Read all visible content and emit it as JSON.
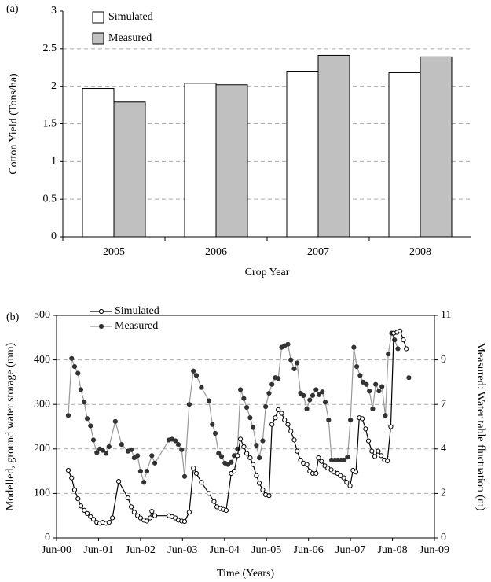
{
  "chart_data": [
    {
      "type": "bar",
      "label": "(a)",
      "x_label": "Crop Year",
      "y_label": "Cotton Yield  (Tons/ha)",
      "categories": [
        "2005",
        "2006",
        "2007",
        "2008"
      ],
      "series": [
        {
          "name": "Simulated",
          "color": "#ffffff",
          "values": [
            1.97,
            2.04,
            2.2,
            2.18
          ]
        },
        {
          "name": "Measured",
          "color": "#c0c0c0",
          "values": [
            1.79,
            2.02,
            2.41,
            2.39
          ]
        }
      ],
      "ylim": [
        0,
        3
      ],
      "yticks": [
        0,
        0.5,
        1,
        1.5,
        2,
        2.5,
        3
      ],
      "grid": true,
      "legend": "upper left"
    },
    {
      "type": "line",
      "label": "(b)",
      "x_label": "Time (Years)",
      "y_label": "Modelled, ground water storage (mm)",
      "y2_label": "Measured: Water table fluctuation (m)",
      "xlim": [
        2000.42,
        2009.42
      ],
      "xticks": [
        {
          "value": 2000.42,
          "label": "Jun-00"
        },
        {
          "value": 2001.42,
          "label": "Jun-01"
        },
        {
          "value": 2002.42,
          "label": "Jun-02"
        },
        {
          "value": 2003.42,
          "label": "Jun-03"
        },
        {
          "value": 2004.42,
          "label": "Jun-04"
        },
        {
          "value": 2005.42,
          "label": "Jun-05"
        },
        {
          "value": 2006.42,
          "label": "Jun-06"
        },
        {
          "value": 2007.42,
          "label": "Jun-07"
        },
        {
          "value": 2008.42,
          "label": "Jun-08"
        },
        {
          "value": 2009.42,
          "label": "Jun-09"
        }
      ],
      "ylim": [
        0,
        500
      ],
      "yticks": [
        0,
        100,
        200,
        300,
        400,
        500
      ],
      "y2lim": [
        0,
        11
      ],
      "y2ticks": [
        0,
        {
          "value": 2.2,
          "label": "2"
        },
        {
          "value": 4.4,
          "label": "4"
        },
        {
          "value": 6.6,
          "label": "7"
        },
        {
          "value": 8.8,
          "label": "9"
        },
        11
      ],
      "grid": true,
      "legend": "upper left",
      "series": [
        {
          "name": "Simulated",
          "color": "#000000",
          "x": [
            2000.7,
            2000.78,
            2000.85,
            2000.93,
            2001.0,
            2001.08,
            2001.15,
            2001.23,
            2001.3,
            2001.38,
            2001.45,
            2001.52,
            2001.6,
            2001.67,
            2001.75,
            2001.9,
            2002.12,
            2002.2,
            2002.27,
            2002.35,
            2002.42,
            2002.5,
            2002.57,
            2002.65,
            2002.69,
            2002.76,
            2003.1,
            2003.17,
            2003.25,
            2003.32,
            2003.4,
            2003.47,
            2003.58,
            2003.68,
            2003.75,
            2003.87,
            2004.05,
            2004.17,
            2004.24,
            2004.32,
            2004.39,
            2004.46,
            2004.58,
            2004.65,
            2004.73,
            2004.8,
            2004.88,
            2004.95,
            2005.03,
            2005.1,
            2005.18,
            2005.25,
            2005.33,
            2005.4,
            2005.48,
            2005.55,
            2005.63,
            2005.7,
            2005.78,
            2005.85,
            2005.93,
            2006.0,
            2006.08,
            2006.15,
            2006.23,
            2006.3,
            2006.38,
            2006.45,
            2006.52,
            2006.6,
            2006.66,
            2006.73,
            2006.81,
            2006.88,
            2006.96,
            2007.03,
            2007.11,
            2007.18,
            2007.26,
            2007.33,
            2007.41,
            2007.48,
            2007.55,
            2007.63,
            2007.7,
            2007.78,
            2007.85,
            2007.93,
            2008.0,
            2008.08,
            2008.15,
            2008.23,
            2008.3,
            2008.38,
            2008.45,
            2008.53,
            2008.6,
            2008.68,
            2008.75
          ],
          "values": [
            152,
            135,
            108,
            88,
            72,
            62,
            55,
            48,
            42,
            35,
            33,
            35,
            33,
            35,
            45,
            127,
            90,
            70,
            58,
            50,
            45,
            40,
            38,
            45,
            60,
            50,
            50,
            48,
            45,
            40,
            38,
            37,
            58,
            157,
            145,
            125,
            100,
            82,
            70,
            66,
            64,
            62,
            145,
            150,
            185,
            222,
            205,
            190,
            180,
            165,
            140,
            123,
            108,
            97,
            95,
            255,
            270,
            288,
            280,
            265,
            255,
            240,
            220,
            195,
            175,
            168,
            165,
            150,
            145,
            145,
            180,
            172,
            162,
            157,
            153,
            148,
            145,
            140,
            135,
            125,
            117,
            152,
            148,
            270,
            268,
            245,
            218,
            195,
            183,
            195,
            185,
            175,
            173,
            250,
            460,
            462,
            465,
            445,
            425
          ]
        },
        {
          "name": "Measured",
          "color": "#999999",
          "marker_color": "#333333",
          "axis": "y2",
          "x": [
            2000.7,
            2000.78,
            2000.85,
            2000.93,
            2001.0,
            2001.08,
            2001.15,
            2001.23,
            2001.3,
            2001.38,
            2001.45,
            2001.52,
            2001.6,
            2001.67,
            2001.82,
            2001.97,
            2002.12,
            2002.2,
            2002.27,
            2002.35,
            2002.42,
            2002.5,
            2002.57,
            2002.69,
            2002.76,
            2003.1,
            2003.17,
            2003.25,
            2003.32,
            2003.4,
            2003.47,
            2003.58,
            2003.68,
            2003.75,
            2003.87,
            2004.05,
            2004.13,
            2004.2,
            2004.28,
            2004.35,
            2004.43,
            2004.5,
            2004.58,
            2004.65,
            2004.73,
            2004.8,
            2004.88,
            2004.95,
            2005.03,
            2005.1,
            2005.18,
            2005.25,
            2005.33,
            2005.4,
            2005.48,
            2005.55,
            2005.63,
            2005.7,
            2005.78,
            2005.85,
            2005.93,
            2006.0,
            2006.08,
            2006.15,
            2006.23,
            2006.3,
            2006.38,
            2006.45,
            2006.52,
            2006.6,
            2006.67,
            2006.75,
            2006.82,
            2006.9,
            2006.97,
            2007.05,
            2007.12,
            2007.2,
            2007.27,
            2007.35,
            2007.42,
            2007.5,
            2007.57,
            2007.65,
            2007.72,
            2007.8,
            2007.87,
            2007.95,
            2008.02,
            2008.1,
            2008.17,
            2008.25,
            2008.32,
            2008.4,
            2008.47,
            2008.55,
            2008.68,
            2008.81
          ],
          "values": [
            6.05,
            8.87,
            8.47,
            8.14,
            7.33,
            6.71,
            5.9,
            5.54,
            4.84,
            4.22,
            4.4,
            4.33,
            4.18,
            4.51,
            5.76,
            4.62,
            4.29,
            4.36,
            3.96,
            4.07,
            3.3,
            2.75,
            3.3,
            4.07,
            3.7,
            4.84,
            4.88,
            4.8,
            4.62,
            4.36,
            3.04,
            6.6,
            8.25,
            8.03,
            7.44,
            6.78,
            5.61,
            5.17,
            4.18,
            4.03,
            3.7,
            3.63,
            3.74,
            4.07,
            4.4,
            7.33,
            6.89,
            6.45,
            5.94,
            5.46,
            4.58,
            3.96,
            4.8,
            6.49,
            7.15,
            7.59,
            7.92,
            7.88,
            9.42,
            9.5,
            9.57,
            8.8,
            8.36,
            8.65,
            7.15,
            7.04,
            6.38,
            6.82,
            7.04,
            7.33,
            7.08,
            7.22,
            6.71,
            5.83,
            3.85,
            3.85,
            3.85,
            3.85,
            3.85,
            4.0,
            5.83,
            9.42,
            8.47,
            8.03,
            7.7,
            7.59,
            7.26,
            6.38,
            7.59,
            7.26,
            7.48,
            6.05,
            9.09,
            10.12,
            9.79,
            9.35,
            null,
            7.92
          ]
        }
      ]
    }
  ]
}
